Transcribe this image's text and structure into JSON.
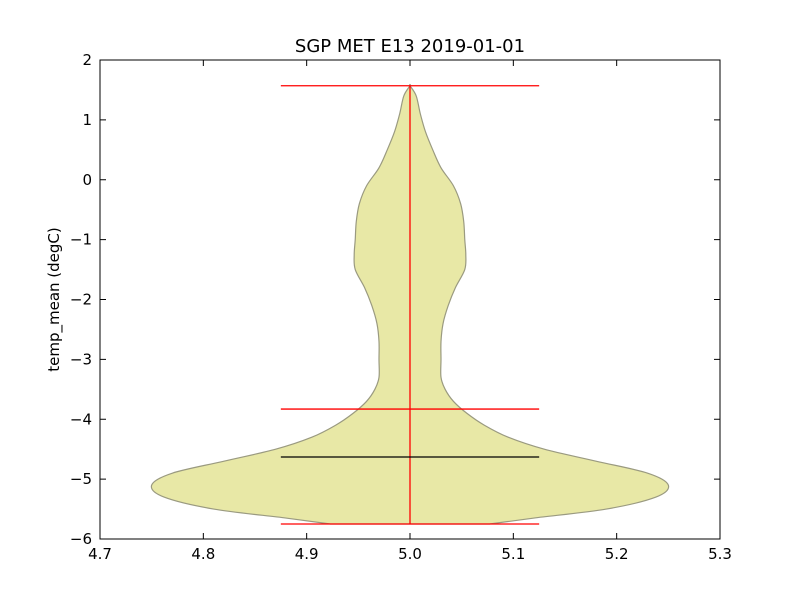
{
  "chart_data": {
    "type": "violin",
    "title": "SGP MET E13 2019-01-01",
    "xlabel": "",
    "ylabel": "temp_mean (degC)",
    "xlim": [
      4.7,
      5.3
    ],
    "ylim": [
      -6,
      2
    ],
    "x_ticks": [
      4.7,
      4.8,
      4.9,
      5.0,
      5.1,
      5.2,
      5.3
    ],
    "x_tick_labels": [
      "4.7",
      "4.8",
      "4.9",
      "5.0",
      "5.1",
      "5.2",
      "5.3"
    ],
    "y_ticks": [
      2,
      1,
      0,
      -1,
      -2,
      -3,
      -4,
      -5,
      -6
    ],
    "y_tick_labels": [
      "2",
      "1",
      "0",
      "−1",
      "−2",
      "−3",
      "−4",
      "−5",
      "−6"
    ],
    "grid": false,
    "violin": {
      "position": 5.0,
      "min": -5.75,
      "max": 1.57,
      "mean": -3.83,
      "median": -4.63,
      "fill_color": "#e8e8a6",
      "edge_color": "#9a9a80",
      "extrema_color": "#ff0000",
      "median_color": "#000000",
      "density_profile": [
        {
          "y": -5.75,
          "half_width": 0.077
        },
        {
          "y": -5.65,
          "half_width": 0.12
        },
        {
          "y": -5.5,
          "half_width": 0.19
        },
        {
          "y": -5.3,
          "half_width": 0.238
        },
        {
          "y": -5.1,
          "half_width": 0.25
        },
        {
          "y": -4.9,
          "half_width": 0.23
        },
        {
          "y": -4.7,
          "half_width": 0.18
        },
        {
          "y": -4.5,
          "half_width": 0.13
        },
        {
          "y": -4.3,
          "half_width": 0.095
        },
        {
          "y": -4.1,
          "half_width": 0.072
        },
        {
          "y": -3.9,
          "half_width": 0.055
        },
        {
          "y": -3.7,
          "half_width": 0.042
        },
        {
          "y": -3.5,
          "half_width": 0.034
        },
        {
          "y": -3.3,
          "half_width": 0.03
        },
        {
          "y": -3.0,
          "half_width": 0.03
        },
        {
          "y": -2.7,
          "half_width": 0.03
        },
        {
          "y": -2.4,
          "half_width": 0.032
        },
        {
          "y": -2.1,
          "half_width": 0.037
        },
        {
          "y": -1.8,
          "half_width": 0.044
        },
        {
          "y": -1.5,
          "half_width": 0.053
        },
        {
          "y": -1.25,
          "half_width": 0.054
        },
        {
          "y": -1.0,
          "half_width": 0.053
        },
        {
          "y": -0.7,
          "half_width": 0.052
        },
        {
          "y": -0.4,
          "half_width": 0.049
        },
        {
          "y": -0.1,
          "half_width": 0.042
        },
        {
          "y": 0.2,
          "half_width": 0.03
        },
        {
          "y": 0.5,
          "half_width": 0.022
        },
        {
          "y": 0.8,
          "half_width": 0.015
        },
        {
          "y": 1.1,
          "half_width": 0.01
        },
        {
          "y": 1.4,
          "half_width": 0.006
        },
        {
          "y": 1.57,
          "half_width": 0.0
        }
      ]
    }
  }
}
